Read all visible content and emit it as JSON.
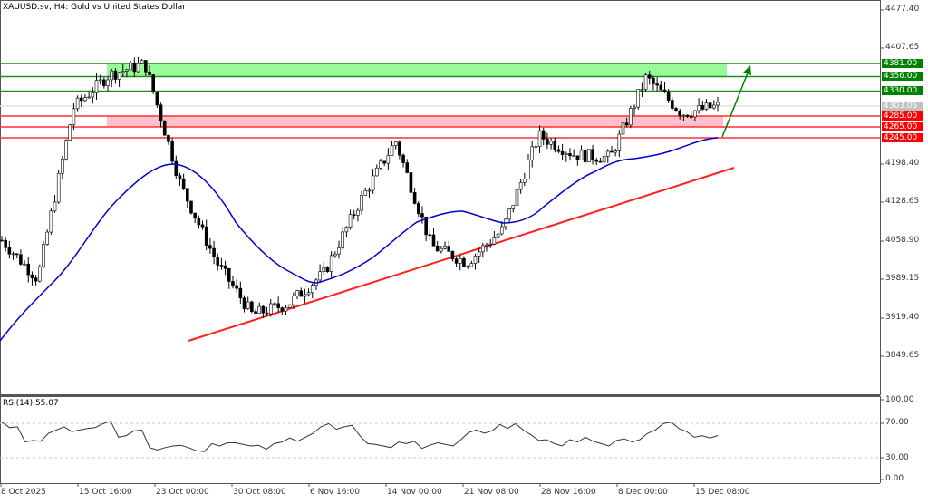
{
  "header": {
    "title": "XAUUSD.sv, H4:  Gold vs United States Dollar"
  },
  "rsi_pane": {
    "title": "RSI(14) 55.07"
  },
  "price_axis": {
    "ticks": [
      "4477.40",
      "4407.65",
      "4198.40",
      "4128.65",
      "4058.90",
      "3989.15",
      "3919.40",
      "3849.65"
    ]
  },
  "rsi_axis": {
    "ticks": [
      "100.00",
      "70.00",
      "30.00",
      "0.00"
    ]
  },
  "time_axis": {
    "ticks": [
      "8 Oct 2025",
      "15 Oct 16:00",
      "23 Oct 00:00",
      "30 Oct 08:00",
      "6 Nov 16:00",
      "14 Nov 00:00",
      "21 Nov 08:00",
      "28 Nov 16:00",
      "8 Dec 00:00",
      "15 Dec 08:00"
    ]
  },
  "level_tags": [
    {
      "label": "4381.00",
      "color": "#008000"
    },
    {
      "label": "4356.00",
      "color": "#008000"
    },
    {
      "label": "4330.00",
      "color": "#008000"
    },
    {
      "label": "4303.06",
      "color": "#c0c0c0"
    },
    {
      "label": "4285.00",
      "color": "#ff0000"
    },
    {
      "label": "4265.00",
      "color": "#ff0000"
    },
    {
      "label": "4245.00",
      "color": "#ff0000"
    }
  ],
  "colors": {
    "resistance": "#228b22",
    "resistance_zone": "#98fb98",
    "support": "#ff0000",
    "support_zone": "#ffc0cb",
    "moving_average": "#0000cd",
    "trendline": "#ff0000",
    "arrow": "#008000",
    "current_price": "#c0c0c0"
  },
  "chart_data": [
    {
      "type": "candlestick",
      "title": "XAUUSD.sv, H4: Gold vs United States Dollar",
      "xlabel": "",
      "ylabel": "",
      "x_ticks": [
        "8 Oct 2025",
        "15 Oct 16:00",
        "23 Oct 00:00",
        "30 Oct 08:00",
        "6 Nov 16:00",
        "14 Nov 00:00",
        "21 Nov 08:00",
        "28 Nov 16:00",
        "8 Dec 00:00",
        "15 Dec 08:00"
      ],
      "y_ticks": [
        4477.4,
        4407.65,
        4198.4,
        4128.65,
        4058.9,
        3989.15,
        3919.4,
        3849.65
      ],
      "ylim": [
        3780,
        4490
      ],
      "grid": false,
      "current_price": 4303.06,
      "horizontal_levels": {
        "resistance": [
          4381.0,
          4356.0,
          4330.0
        ],
        "support": [
          4285.0,
          4265.0,
          4245.0
        ]
      },
      "zones": [
        {
          "name": "resistance zone",
          "from": 4356.0,
          "to": 4381.0
        },
        {
          "name": "support zone",
          "from": 4265.0,
          "to": 4285.0
        }
      ],
      "approx_close_path": {
        "x": [
          "8 Oct 2025",
          "10 Oct",
          "15 Oct 16:00",
          "17 Oct",
          "18 Oct",
          "20 Oct",
          "23 Oct 00:00",
          "28 Oct",
          "30 Oct 08:00",
          "4 Nov",
          "6 Nov 16:00",
          "12 Nov",
          "14 Nov 00:00",
          "18 Nov",
          "21 Nov 08:00",
          "28 Nov 16:00",
          "3 Dec",
          "8 Dec 00:00",
          "11 Dec",
          "15 Dec 08:00",
          "16 Dec"
        ],
        "close": [
          4060,
          3990,
          4300,
          4360,
          4380,
          4160,
          4020,
          3925,
          3945,
          4000,
          4130,
          4240,
          4050,
          4020,
          4080,
          4250,
          4215,
          4210,
          4355,
          4290,
          4303
        ]
      },
      "series": [
        {
          "name": "Moving Average (blue)",
          "values_approx": [
            3890,
            4020,
            4150,
            4215,
            4190,
            4060,
            3990,
            3975,
            4050,
            4110,
            4110,
            4150,
            4210,
            4230,
            4245
          ]
        }
      ],
      "trendline": {
        "name": "Ascending support",
        "from": {
          "x": "23 Oct 00:00",
          "price": 3890
        },
        "to": {
          "x": "16 Dec",
          "price": 4205
        }
      },
      "annotation": "Green arrow projecting upward from ~4245 toward ~4370"
    },
    {
      "type": "line",
      "title": "RSI(14) 55.07",
      "ylim": [
        0,
        100
      ],
      "y_ticks": [
        100,
        70,
        30,
        0
      ],
      "reference_lines": [
        70,
        30
      ],
      "last_value": 55.07,
      "values_approx": [
        72,
        65,
        66,
        47,
        49,
        48,
        58,
        62,
        66,
        60,
        62,
        64,
        65,
        70,
        73,
        53,
        55,
        61,
        62,
        40,
        37,
        40,
        42,
        43,
        40,
        36,
        35,
        45,
        42,
        46,
        46,
        44,
        42,
        43,
        38,
        45,
        47,
        52,
        48,
        53,
        58,
        66,
        70,
        63,
        66,
        68,
        55,
        45,
        44,
        42,
        40,
        47,
        45,
        48,
        39,
        43,
        46,
        44,
        42,
        50,
        59,
        62,
        58,
        61,
        69,
        64,
        70,
        62,
        56,
        49,
        50,
        45,
        42,
        50,
        47,
        53,
        48,
        45,
        42,
        49,
        51,
        47,
        50,
        58,
        62,
        70,
        72,
        64,
        60,
        53,
        55,
        52,
        55.07
      ]
    }
  ]
}
